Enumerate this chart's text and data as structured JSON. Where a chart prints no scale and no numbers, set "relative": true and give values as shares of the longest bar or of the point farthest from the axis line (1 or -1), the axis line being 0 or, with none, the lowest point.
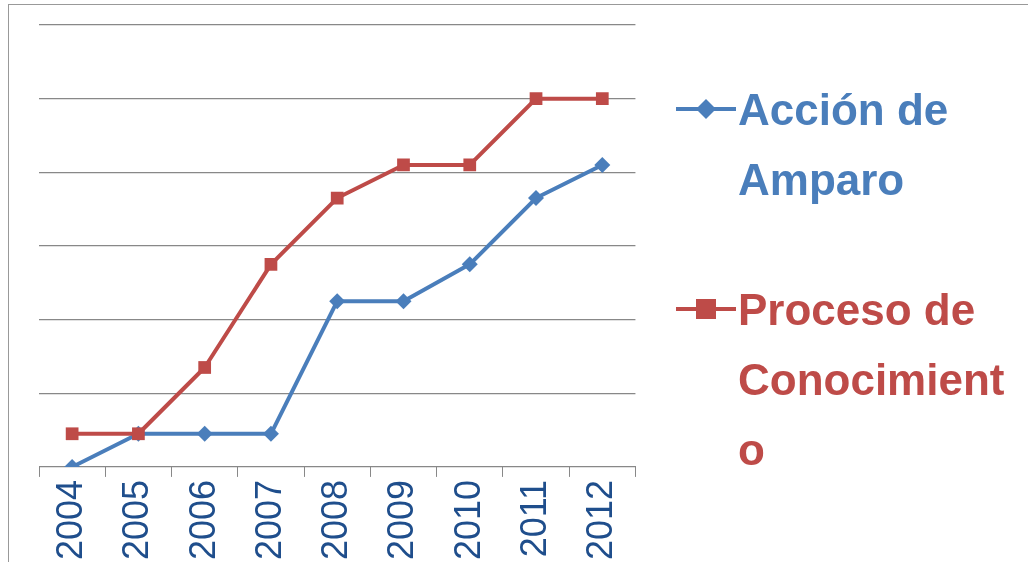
{
  "chart_data": {
    "type": "line",
    "relative": true,
    "categories": [
      "2004",
      "2005",
      "2006",
      "2007",
      "2008",
      "2009",
      "2010",
      "2011",
      "2012"
    ],
    "series": [
      {
        "name": "Acción de Amparo",
        "color": "#4a7ebb",
        "marker": "diamond",
        "values": [
          0,
          0.09,
          0.09,
          0.09,
          0.45,
          0.45,
          0.55,
          0.73,
          0.82
        ]
      },
      {
        "name": "Proceso de Conocimiento",
        "color": "#be4b48",
        "marker": "square",
        "values": [
          0.09,
          0.09,
          0.27,
          0.55,
          0.73,
          0.82,
          0.82,
          1,
          1
        ]
      }
    ],
    "grid": "y",
    "legend": "right",
    "line_style": "solid"
  }
}
